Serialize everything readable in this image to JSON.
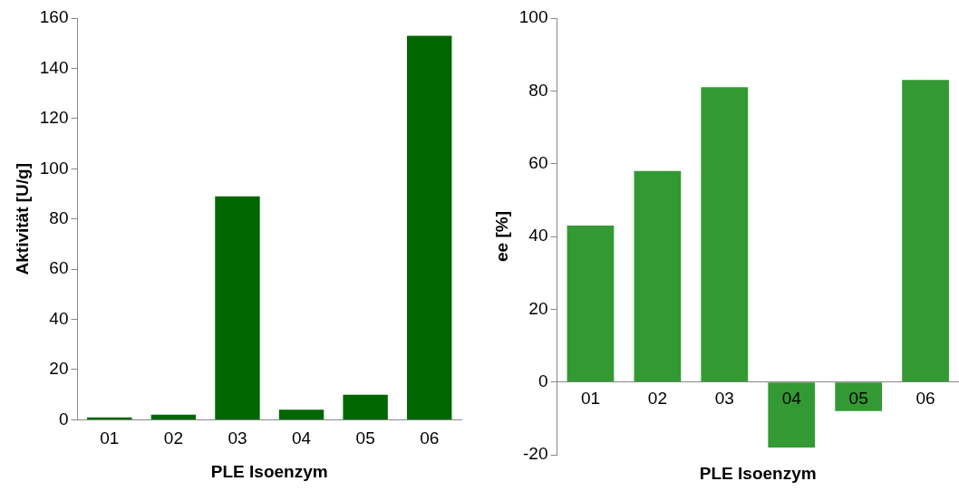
{
  "chart_data": [
    {
      "type": "bar",
      "xlabel": "PLE Isoenzym",
      "ylabel": "Aktivität [U/g]",
      "categories": [
        "01",
        "02",
        "03",
        "04",
        "05",
        "06"
      ],
      "values": [
        1,
        2,
        89,
        4,
        10,
        153
      ],
      "color": "#006600",
      "ylim": [
        0,
        160
      ],
      "yticks": [
        0,
        20,
        40,
        60,
        80,
        100,
        120,
        140,
        160
      ],
      "grid": false,
      "legend": false
    },
    {
      "type": "bar",
      "xlabel": "PLE Isoenzym",
      "ylabel": "ee [%]",
      "categories": [
        "01",
        "02",
        "03",
        "04",
        "05",
        "06"
      ],
      "values": [
        43,
        58,
        81,
        -18,
        -8,
        83
      ],
      "color": "#339933",
      "ylim": [
        -20,
        100
      ],
      "yticks": [
        -20,
        0,
        20,
        40,
        60,
        80,
        100
      ],
      "grid": false,
      "legend": false
    }
  ]
}
